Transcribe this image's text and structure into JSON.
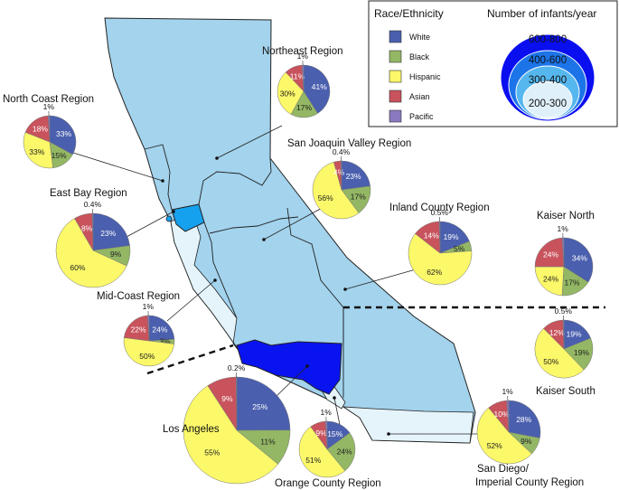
{
  "legend": {
    "race_title": "Race/Ethnicity",
    "size_title": "Number of infants/year",
    "categories": [
      {
        "name": "White",
        "color": "#4a5fae"
      },
      {
        "name": "Black",
        "color": "#93b764"
      },
      {
        "name": "Hispanic",
        "color": "#fbf869"
      },
      {
        "name": "Asian",
        "color": "#c8535c"
      },
      {
        "name": "Pacific",
        "color": "#8a78c0"
      }
    ],
    "size_bins": [
      {
        "label": "600-800",
        "color": "#0a0ff0"
      },
      {
        "label": "400-600",
        "color": "#1c74e8"
      },
      {
        "label": "300-400",
        "color": "#56b7ee"
      },
      {
        "label": "200-300",
        "color": "#dff0fa"
      }
    ]
  },
  "map": {
    "colors": {
      "light_region": "#a3d3ed",
      "lighter_region": "#e5f4fb",
      "bay": "#16a1ee",
      "la": "#0913f0",
      "outline": "#222222"
    }
  },
  "regions": [
    {
      "name": "Northeast Region",
      "White": 41,
      "Black": 17,
      "Hispanic": 30,
      "Asian": 11,
      "Pacific": 1,
      "labels": {
        "White": "41%",
        "Black": "17%",
        "Hispanic": "30%",
        "Asian": "11%",
        "Pacific": "1%"
      }
    },
    {
      "name": "North Coast Region",
      "White": 33,
      "Black": 15,
      "Hispanic": 33,
      "Asian": 18,
      "Pacific": 1,
      "labels": {
        "White": "33%",
        "Black": "15%",
        "Hispanic": "33%",
        "Asian": "18%",
        "Pacific": "1%"
      }
    },
    {
      "name": "San Joaquin Valley Region",
      "White": 23,
      "Black": 17,
      "Hispanic": 56,
      "Asian": 4,
      "Pacific": 0.4,
      "labels": {
        "White": "23%",
        "Black": "17%",
        "Hispanic": "56%",
        "Asian": "4%",
        "Pacific": "0.4%"
      }
    },
    {
      "name": "East Bay Region",
      "White": 23,
      "Black": 9,
      "Hispanic": 60,
      "Asian": 8,
      "Pacific": 0.4,
      "labels": {
        "White": "23%",
        "Black": "9%",
        "Hispanic": "60%",
        "Asian": "8%",
        "Pacific": "0.4%"
      }
    },
    {
      "name": "Inland County Region",
      "White": 19,
      "Black": 5,
      "Hispanic": 62,
      "Asian": 14,
      "Pacific": 0.5,
      "labels": {
        "White": "19%",
        "Black": "5%",
        "Hispanic": "62%",
        "Asian": "14%",
        "Pacific": "0.5%"
      }
    },
    {
      "name": "Kaiser North",
      "White": 34,
      "Black": 17,
      "Hispanic": 24,
      "Asian": 24,
      "Pacific": 1,
      "labels": {
        "White": "34%",
        "Black": "17%",
        "Hispanic": "24%",
        "Asian": "24%",
        "Pacific": "1%"
      }
    },
    {
      "name": "Mid-Coast Region",
      "White": 24,
      "Black": 3,
      "Hispanic": 50,
      "Asian": 22,
      "Pacific": 1,
      "labels": {
        "White": "24%",
        "Black": "3%",
        "Hispanic": "50%",
        "Asian": "22%",
        "Pacific": "1%"
      }
    },
    {
      "name": "Kaiser South",
      "White": 19,
      "Black": 19,
      "Hispanic": 50,
      "Asian": 12,
      "Pacific": 0.5,
      "labels": {
        "White": "19%",
        "Black": "19%",
        "Hispanic": "50%",
        "Asian": "12%",
        "Pacific": "0.5%"
      }
    },
    {
      "name": "Los Angeles",
      "White": 25,
      "Black": 11,
      "Hispanic": 55,
      "Asian": 9,
      "Pacific": 0.2,
      "labels": {
        "White": "25%",
        "Black": "11%",
        "Hispanic": "55%",
        "Asian": "9%",
        "Pacific": "0.2%"
      }
    },
    {
      "name": "Orange County Region",
      "White": 15,
      "Black": 24,
      "Hispanic": 51,
      "Asian": 9,
      "Pacific": 1,
      "labels": {
        "White": "15%",
        "Black": "24%",
        "Hispanic": "51%",
        "Asian": "9%",
        "Pacific": "1%"
      }
    },
    {
      "name": "San Diego/ Imperial County Region",
      "White": 28,
      "Black": 9,
      "Hispanic": 52,
      "Asian": 10,
      "Pacific": 1,
      "labels": {
        "White": "28%",
        "Black": "9%",
        "Hispanic": "52%",
        "Asian": "10%",
        "Pacific": "1%"
      }
    }
  ]
}
